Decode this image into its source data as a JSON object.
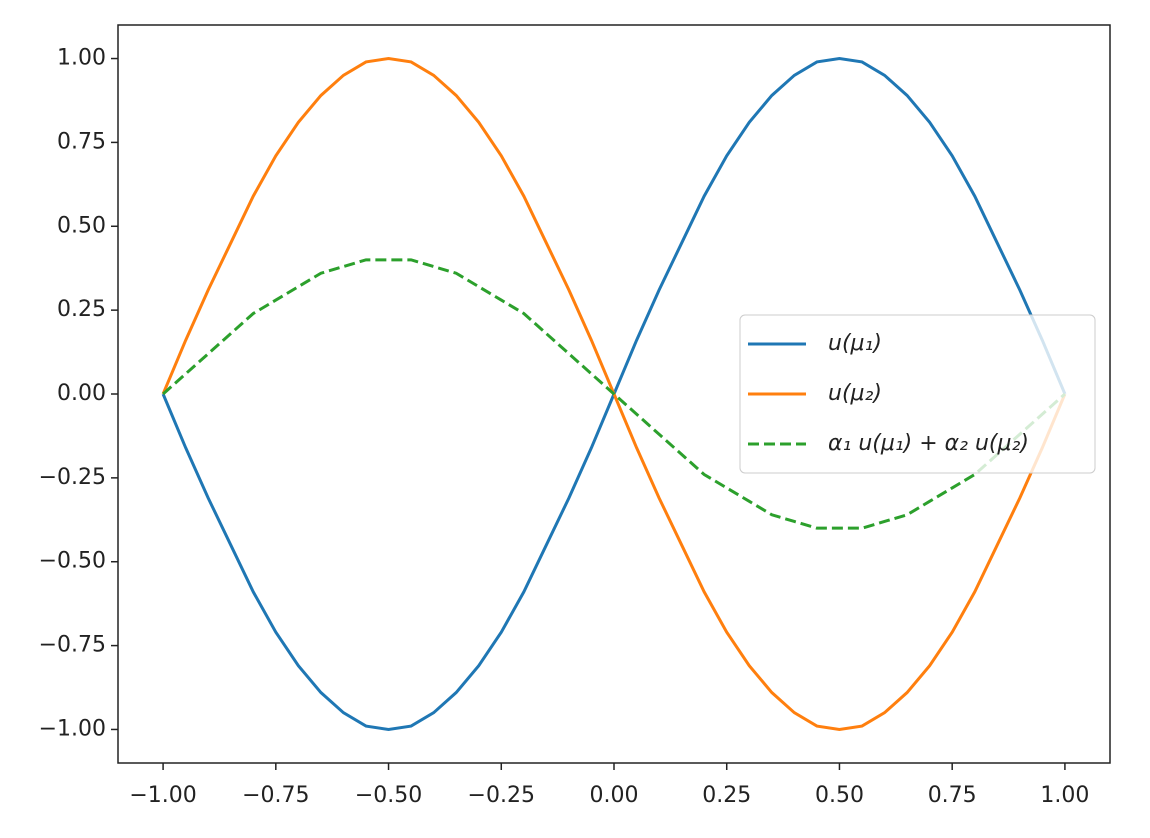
{
  "chart_data": {
    "type": "line",
    "x": [
      -1,
      -0.95,
      -0.9,
      -0.85,
      -0.8,
      -0.75,
      -0.7,
      -0.65,
      -0.6,
      -0.55,
      -0.5,
      -0.45,
      -0.4,
      -0.35,
      -0.3,
      -0.25,
      -0.2,
      -0.15,
      -0.1,
      -0.05,
      0,
      0.05,
      0.1,
      0.15,
      0.2,
      0.25,
      0.3,
      0.35,
      0.4,
      0.45,
      0.5,
      0.55,
      0.6,
      0.65,
      0.7,
      0.75,
      0.8,
      0.85,
      0.9,
      0.95,
      1
    ],
    "series": [
      {
        "name": "u(μ₁)",
        "color": "#1f77b4",
        "dash": false,
        "values": [
          0,
          -0.16,
          -0.31,
          -0.45,
          -0.59,
          -0.71,
          -0.81,
          -0.89,
          -0.95,
          -0.99,
          -1,
          -0.99,
          -0.95,
          -0.89,
          -0.81,
          -0.71,
          -0.59,
          -0.45,
          -0.31,
          -0.16,
          0,
          0.16,
          0.31,
          0.45,
          0.59,
          0.71,
          0.81,
          0.89,
          0.95,
          0.99,
          1,
          0.99,
          0.95,
          0.89,
          0.81,
          0.71,
          0.59,
          0.45,
          0.31,
          0.16,
          0
        ]
      },
      {
        "name": "u(μ₂)",
        "color": "#ff7f0e",
        "dash": false,
        "values": [
          0,
          0.16,
          0.31,
          0.45,
          0.59,
          0.71,
          0.81,
          0.89,
          0.95,
          0.99,
          1,
          0.99,
          0.95,
          0.89,
          0.81,
          0.71,
          0.59,
          0.45,
          0.31,
          0.16,
          0,
          -0.16,
          -0.31,
          -0.45,
          -0.59,
          -0.71,
          -0.81,
          -0.89,
          -0.95,
          -0.99,
          -1,
          -0.99,
          -0.95,
          -0.89,
          -0.81,
          -0.71,
          -0.59,
          -0.45,
          -0.31,
          -0.16,
          0
        ]
      },
      {
        "name": "α₁ u(μ₁) + α₂ u(μ₂)",
        "color": "#2ca02c",
        "dash": true,
        "values": [
          0,
          0.06,
          0.12,
          0.18,
          0.24,
          0.28,
          0.32,
          0.36,
          0.38,
          0.4,
          0.4,
          0.4,
          0.38,
          0.36,
          0.32,
          0.28,
          0.24,
          0.18,
          0.12,
          0.06,
          0,
          -0.06,
          -0.12,
          -0.18,
          -0.24,
          -0.28,
          -0.32,
          -0.36,
          -0.38,
          -0.4,
          -0.4,
          -0.4,
          -0.38,
          -0.36,
          -0.32,
          -0.28,
          -0.24,
          -0.18,
          -0.12,
          -0.06,
          0
        ]
      }
    ],
    "xlim": [
      -1.1,
      1.1
    ],
    "ylim": [
      -1.1,
      1.1
    ],
    "xticks": [
      {
        "value": -1,
        "label": "−1.00"
      },
      {
        "value": -0.75,
        "label": "−0.75"
      },
      {
        "value": -0.5,
        "label": "−0.50"
      },
      {
        "value": -0.25,
        "label": "−0.25"
      },
      {
        "value": 0,
        "label": "0.00"
      },
      {
        "value": 0.25,
        "label": "0.25"
      },
      {
        "value": 0.5,
        "label": "0.50"
      },
      {
        "value": 0.75,
        "label": "0.75"
      },
      {
        "value": 1,
        "label": "1.00"
      }
    ],
    "yticks": [
      {
        "value": -1,
        "label": "−1.00"
      },
      {
        "value": -0.75,
        "label": "−0.75"
      },
      {
        "value": -0.5,
        "label": "−0.50"
      },
      {
        "value": -0.25,
        "label": "−0.25"
      },
      {
        "value": 0,
        "label": "0.00"
      },
      {
        "value": 0.25,
        "label": "0.25"
      },
      {
        "value": 0.5,
        "label": "0.50"
      },
      {
        "value": 0.75,
        "label": "0.75"
      },
      {
        "value": 1,
        "label": "1.00"
      }
    ],
    "grid": false,
    "legend": "center right"
  }
}
